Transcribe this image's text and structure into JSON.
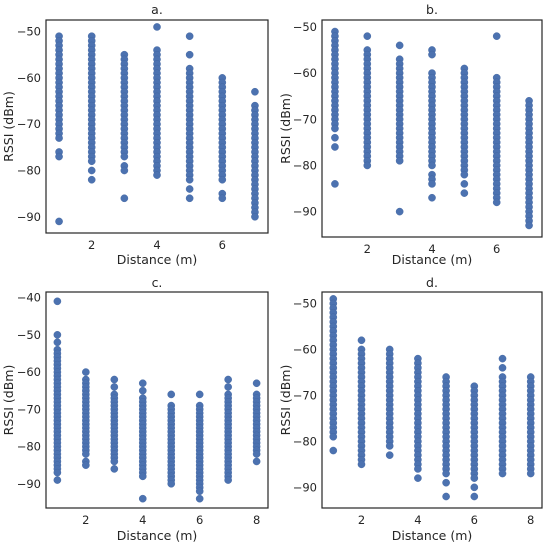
{
  "chart_data": [
    {
      "type": "scatter",
      "title": "a.",
      "xlabel": "Distance (m)",
      "ylabel": "RSSI (dBm)",
      "xlim": [
        0.6,
        7.4
      ],
      "ylim": [
        -93.5,
        -47.5
      ],
      "xticks": [
        2,
        4,
        6
      ],
      "yticks": [
        -50,
        -60,
        -70,
        -80,
        -90
      ],
      "grid": false,
      "color": "#4c72b0",
      "series": [
        {
          "x": 1,
          "y": [
            -51,
            -52,
            -53,
            -54,
            -55,
            -56,
            -57,
            -58,
            -59,
            -60,
            -61,
            -62,
            -63,
            -64,
            -65,
            -66,
            -67,
            -68,
            -69,
            -70,
            -71,
            -72,
            -73,
            -76,
            -77,
            -91
          ]
        },
        {
          "x": 2,
          "y": [
            -51,
            -52,
            -53,
            -54,
            -55,
            -56,
            -57,
            -58,
            -59,
            -60,
            -61,
            -62,
            -63,
            -64,
            -65,
            -66,
            -67,
            -68,
            -69,
            -70,
            -71,
            -72,
            -73,
            -74,
            -75,
            -76,
            -77,
            -78,
            -80,
            -82
          ]
        },
        {
          "x": 3,
          "y": [
            -55,
            -56,
            -57,
            -58,
            -59,
            -60,
            -61,
            -62,
            -63,
            -64,
            -65,
            -66,
            -67,
            -68,
            -69,
            -70,
            -71,
            -72,
            -73,
            -74,
            -75,
            -76,
            -77,
            -79,
            -80,
            -86
          ]
        },
        {
          "x": 4,
          "y": [
            -49,
            -54,
            -55,
            -56,
            -57,
            -58,
            -59,
            -60,
            -61,
            -62,
            -63,
            -64,
            -65,
            -66,
            -67,
            -68,
            -69,
            -70,
            -71,
            -72,
            -73,
            -74,
            -75,
            -76,
            -77,
            -78,
            -79,
            -80,
            -81
          ]
        },
        {
          "x": 5,
          "y": [
            -51,
            -55,
            -58,
            -59,
            -60,
            -61,
            -62,
            -63,
            -64,
            -65,
            -66,
            -67,
            -68,
            -69,
            -70,
            -71,
            -72,
            -73,
            -74,
            -75,
            -76,
            -77,
            -78,
            -79,
            -80,
            -81,
            -82,
            -84,
            -86
          ]
        },
        {
          "x": 6,
          "y": [
            -60,
            -61,
            -62,
            -63,
            -64,
            -65,
            -66,
            -67,
            -68,
            -69,
            -70,
            -71,
            -72,
            -73,
            -74,
            -75,
            -76,
            -77,
            -78,
            -79,
            -80,
            -81,
            -82,
            -85,
            -86
          ]
        },
        {
          "x": 7,
          "y": [
            -63,
            -66,
            -67,
            -68,
            -69,
            -70,
            -71,
            -72,
            -73,
            -74,
            -75,
            -76,
            -77,
            -78,
            -79,
            -80,
            -81,
            -82,
            -83,
            -84,
            -85,
            -86,
            -87,
            -88,
            -89,
            -90
          ]
        }
      ]
    },
    {
      "type": "scatter",
      "title": "b.",
      "xlabel": "Distance (m)",
      "ylabel": "RSSI (dBm)",
      "xlim": [
        0.6,
        7.4
      ],
      "ylim": [
        -95.5,
        -48.5
      ],
      "xticks": [
        2,
        4,
        6
      ],
      "yticks": [
        -50,
        -60,
        -70,
        -80,
        -90
      ],
      "grid": false,
      "color": "#4c72b0",
      "series": [
        {
          "x": 1,
          "y": [
            -51,
            -52,
            -53,
            -54,
            -55,
            -56,
            -57,
            -58,
            -59,
            -60,
            -61,
            -62,
            -63,
            -64,
            -65,
            -66,
            -67,
            -68,
            -69,
            -70,
            -71,
            -72,
            -74,
            -76,
            -84
          ]
        },
        {
          "x": 2,
          "y": [
            -52,
            -55,
            -56,
            -57,
            -58,
            -59,
            -60,
            -61,
            -62,
            -63,
            -64,
            -65,
            -66,
            -67,
            -68,
            -69,
            -70,
            -71,
            -72,
            -73,
            -74,
            -75,
            -76,
            -77,
            -78,
            -79,
            -80
          ]
        },
        {
          "x": 3,
          "y": [
            -54,
            -57,
            -58,
            -59,
            -60,
            -61,
            -62,
            -63,
            -64,
            -65,
            -66,
            -67,
            -68,
            -69,
            -70,
            -71,
            -72,
            -73,
            -74,
            -75,
            -76,
            -77,
            -78,
            -79,
            -90
          ]
        },
        {
          "x": 4,
          "y": [
            -55,
            -56,
            -60,
            -61,
            -62,
            -63,
            -64,
            -65,
            -66,
            -67,
            -68,
            -69,
            -70,
            -71,
            -72,
            -73,
            -74,
            -75,
            -76,
            -77,
            -78,
            -79,
            -80,
            -82,
            -83,
            -84,
            -87
          ]
        },
        {
          "x": 5,
          "y": [
            -59,
            -60,
            -61,
            -62,
            -63,
            -64,
            -65,
            -66,
            -67,
            -68,
            -69,
            -70,
            -71,
            -72,
            -73,
            -74,
            -75,
            -76,
            -77,
            -78,
            -79,
            -80,
            -81,
            -82,
            -84,
            -86
          ]
        },
        {
          "x": 6,
          "y": [
            -52,
            -61,
            -62,
            -63,
            -64,
            -65,
            -66,
            -67,
            -68,
            -69,
            -70,
            -71,
            -72,
            -73,
            -74,
            -75,
            -76,
            -77,
            -78,
            -79,
            -80,
            -81,
            -82,
            -83,
            -84,
            -85,
            -86,
            -87,
            -88
          ]
        },
        {
          "x": 7,
          "y": [
            -66,
            -67,
            -68,
            -69,
            -70,
            -71,
            -72,
            -73,
            -74,
            -75,
            -76,
            -77,
            -78,
            -79,
            -80,
            -81,
            -82,
            -83,
            -84,
            -85,
            -86,
            -87,
            -88,
            -89,
            -90,
            -91,
            -92,
            -93
          ]
        }
      ]
    },
    {
      "type": "scatter",
      "title": "c.",
      "xlabel": "Distance (m)",
      "ylabel": "RSSI (dBm)",
      "xlim": [
        0.6,
        8.4
      ],
      "ylim": [
        -96.5,
        -38.5
      ],
      "xticks": [
        2,
        4,
        6,
        8
      ],
      "yticks": [
        -40,
        -50,
        -60,
        -70,
        -80,
        -90
      ],
      "grid": false,
      "color": "#4c72b0",
      "series": [
        {
          "x": 1,
          "y": [
            -41,
            -50,
            -52,
            -54,
            -55,
            -56,
            -57,
            -58,
            -59,
            -60,
            -61,
            -62,
            -63,
            -64,
            -65,
            -66,
            -67,
            -68,
            -69,
            -70,
            -71,
            -72,
            -73,
            -74,
            -75,
            -76,
            -77,
            -78,
            -79,
            -80,
            -81,
            -82,
            -83,
            -84,
            -85,
            -86,
            -87,
            -89
          ]
        },
        {
          "x": 2,
          "y": [
            -60,
            -62,
            -63,
            -64,
            -65,
            -66,
            -67,
            -68,
            -69,
            -70,
            -71,
            -72,
            -73,
            -74,
            -75,
            -76,
            -77,
            -78,
            -79,
            -80,
            -81,
            -82,
            -84,
            -85
          ]
        },
        {
          "x": 3,
          "y": [
            -62,
            -64,
            -66,
            -67,
            -68,
            -69,
            -70,
            -71,
            -72,
            -73,
            -74,
            -75,
            -76,
            -77,
            -78,
            -79,
            -80,
            -81,
            -82,
            -83,
            -84,
            -86
          ]
        },
        {
          "x": 4,
          "y": [
            -63,
            -65,
            -67,
            -68,
            -69,
            -70,
            -71,
            -72,
            -73,
            -74,
            -75,
            -76,
            -77,
            -78,
            -79,
            -80,
            -81,
            -82,
            -83,
            -84,
            -85,
            -86,
            -87,
            -88,
            -94
          ]
        },
        {
          "x": 5,
          "y": [
            -66,
            -69,
            -70,
            -71,
            -72,
            -73,
            -74,
            -75,
            -76,
            -77,
            -78,
            -79,
            -80,
            -81,
            -82,
            -83,
            -84,
            -85,
            -86,
            -87,
            -88,
            -89,
            -90
          ]
        },
        {
          "x": 6,
          "y": [
            -66,
            -69,
            -70,
            -71,
            -72,
            -73,
            -74,
            -75,
            -76,
            -77,
            -78,
            -79,
            -80,
            -81,
            -82,
            -83,
            -84,
            -85,
            -86,
            -87,
            -88,
            -89,
            -90,
            -91,
            -92,
            -94
          ]
        },
        {
          "x": 7,
          "y": [
            -62,
            -64,
            -66,
            -67,
            -68,
            -69,
            -70,
            -71,
            -72,
            -73,
            -74,
            -75,
            -76,
            -77,
            -78,
            -79,
            -80,
            -81,
            -82,
            -83,
            -84,
            -85,
            -86,
            -87,
            -88,
            -89
          ]
        },
        {
          "x": 8,
          "y": [
            -63,
            -66,
            -67,
            -68,
            -69,
            -70,
            -71,
            -72,
            -73,
            -74,
            -75,
            -76,
            -77,
            -78,
            -79,
            -80,
            -81,
            -82,
            -84
          ]
        }
      ]
    },
    {
      "type": "scatter",
      "title": "d.",
      "xlabel": "Distance (m)",
      "ylabel": "RSSI (dBm)",
      "xlim": [
        0.6,
        8.4
      ],
      "ylim": [
        -94.5,
        -47.5
      ],
      "xticks": [
        2,
        4,
        6,
        8
      ],
      "yticks": [
        -50,
        -60,
        -70,
        -80,
        -90
      ],
      "grid": false,
      "color": "#4c72b0",
      "series": [
        {
          "x": 1,
          "y": [
            -49,
            -50,
            -51,
            -52,
            -53,
            -54,
            -55,
            -56,
            -57,
            -58,
            -59,
            -60,
            -61,
            -62,
            -63,
            -64,
            -65,
            -66,
            -67,
            -68,
            -69,
            -70,
            -71,
            -72,
            -73,
            -74,
            -75,
            -76,
            -77,
            -78,
            -79,
            -82
          ]
        },
        {
          "x": 2,
          "y": [
            -58,
            -60,
            -61,
            -62,
            -63,
            -64,
            -65,
            -66,
            -67,
            -68,
            -69,
            -70,
            -71,
            -72,
            -73,
            -74,
            -75,
            -76,
            -77,
            -78,
            -79,
            -80,
            -81,
            -82,
            -83,
            -84,
            -85
          ]
        },
        {
          "x": 3,
          "y": [
            -60,
            -61,
            -62,
            -63,
            -64,
            -65,
            -66,
            -67,
            -68,
            -69,
            -70,
            -71,
            -72,
            -73,
            -74,
            -75,
            -76,
            -77,
            -78,
            -79,
            -80,
            -81,
            -83
          ]
        },
        {
          "x": 4,
          "y": [
            -62,
            -63,
            -64,
            -65,
            -66,
            -67,
            -68,
            -69,
            -70,
            -71,
            -72,
            -73,
            -74,
            -75,
            -76,
            -77,
            -78,
            -79,
            -80,
            -81,
            -82,
            -83,
            -84,
            -85,
            -86,
            -88
          ]
        },
        {
          "x": 5,
          "y": [
            -66,
            -67,
            -68,
            -69,
            -70,
            -71,
            -72,
            -73,
            -74,
            -75,
            -76,
            -77,
            -78,
            -79,
            -80,
            -81,
            -82,
            -83,
            -84,
            -85,
            -86,
            -87,
            -89,
            -92
          ]
        },
        {
          "x": 6,
          "y": [
            -68,
            -69,
            -70,
            -71,
            -72,
            -73,
            -74,
            -75,
            -76,
            -77,
            -78,
            -79,
            -80,
            -81,
            -82,
            -83,
            -84,
            -85,
            -86,
            -87,
            -88,
            -90,
            -92
          ]
        },
        {
          "x": 7,
          "y": [
            -62,
            -64,
            -66,
            -67,
            -68,
            -69,
            -70,
            -71,
            -72,
            -73,
            -74,
            -75,
            -76,
            -77,
            -78,
            -79,
            -80,
            -81,
            -82,
            -83,
            -84,
            -85,
            -86,
            -87
          ]
        },
        {
          "x": 8,
          "y": [
            -66,
            -67,
            -68,
            -69,
            -70,
            -71,
            -72,
            -73,
            -74,
            -75,
            -76,
            -77,
            -78,
            -79,
            -80,
            -81,
            -82,
            -83,
            -84,
            -85,
            -86,
            -87
          ]
        }
      ]
    }
  ]
}
